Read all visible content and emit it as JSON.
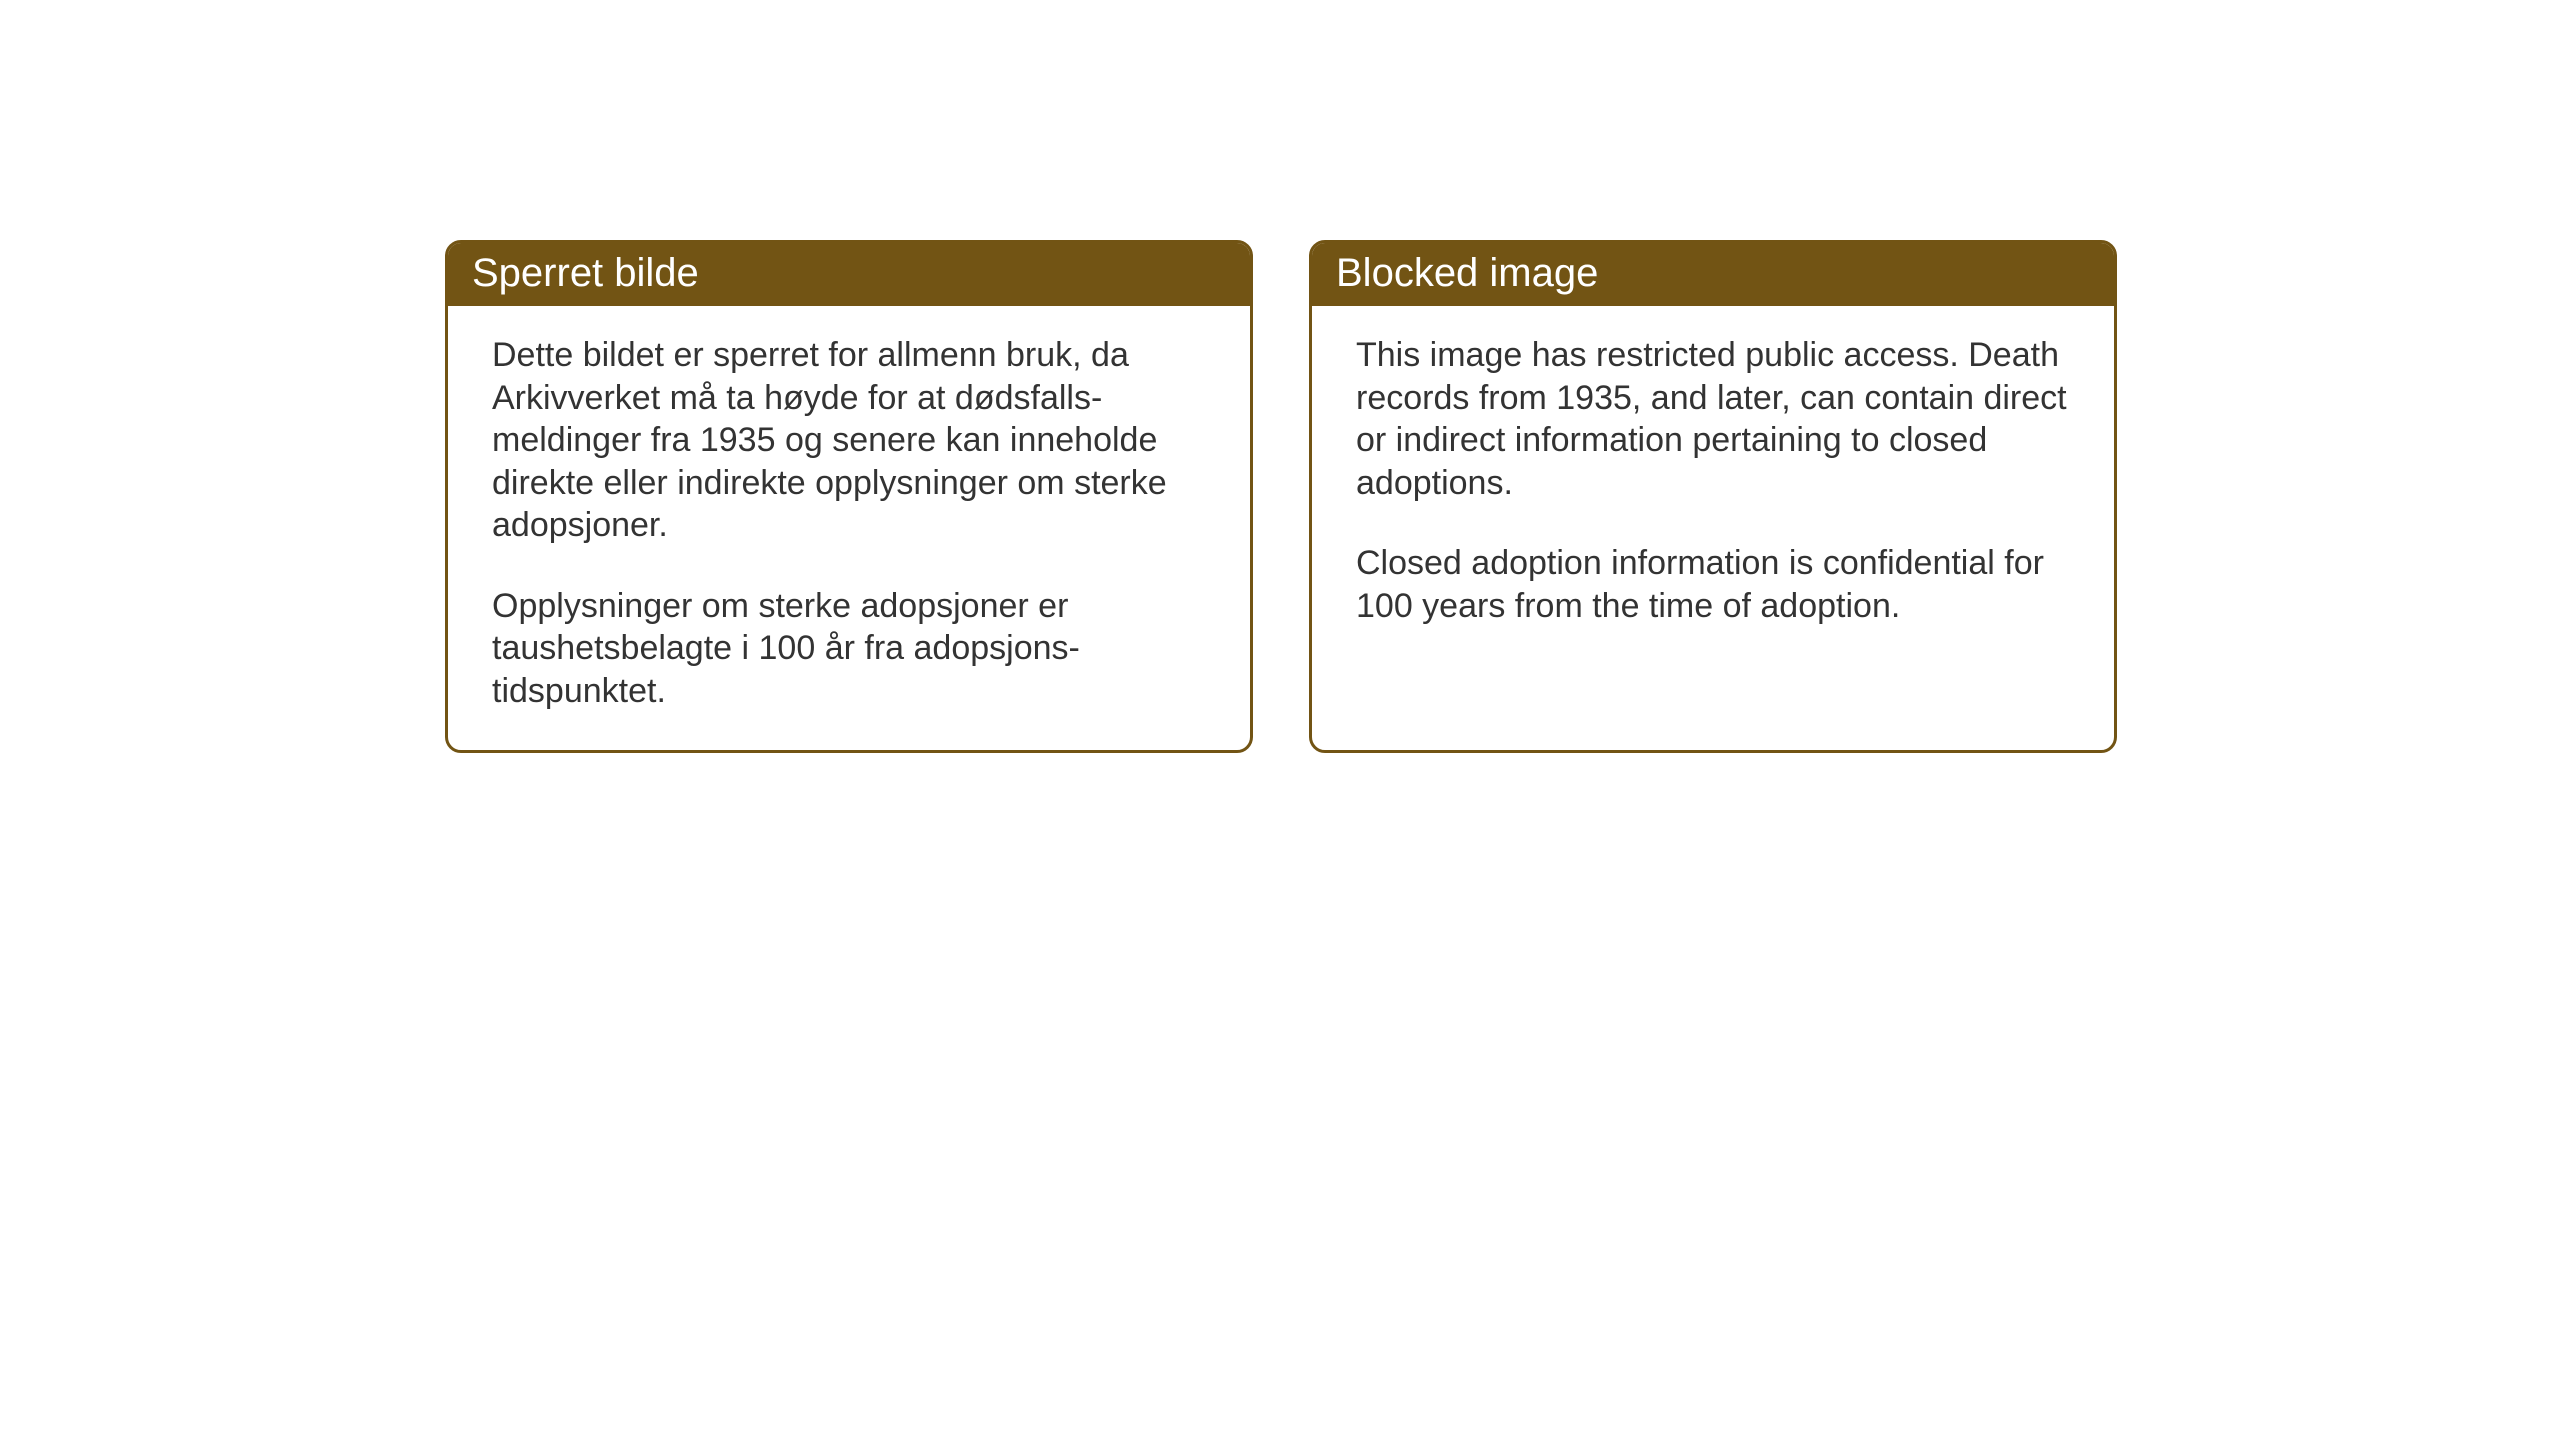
{
  "cards": {
    "norwegian": {
      "title": "Sperret bilde",
      "paragraph1": "Dette bildet er sperret for allmenn bruk, da Arkivverket må ta høyde for at dødsfalls-meldinger fra 1935 og senere kan inneholde direkte eller indirekte opplysninger om sterke adopsjoner.",
      "paragraph2": "Opplysninger om sterke adopsjoner er taushetsbelagte i 100 år fra adopsjons-tidspunktet."
    },
    "english": {
      "title": "Blocked image",
      "paragraph1": "This image has restricted public access. Death records from 1935, and later, can contain direct or indirect information pertaining to closed adoptions.",
      "paragraph2": "Closed adoption information is confidential for 100 years from the time of adoption."
    }
  },
  "styling": {
    "header_bg_color": "#725414",
    "header_text_color": "#ffffff",
    "border_color": "#725414",
    "body_text_color": "#333333",
    "background_color": "#ffffff",
    "header_fontsize": 40,
    "body_fontsize": 34,
    "border_radius": 16,
    "border_width": 3
  }
}
